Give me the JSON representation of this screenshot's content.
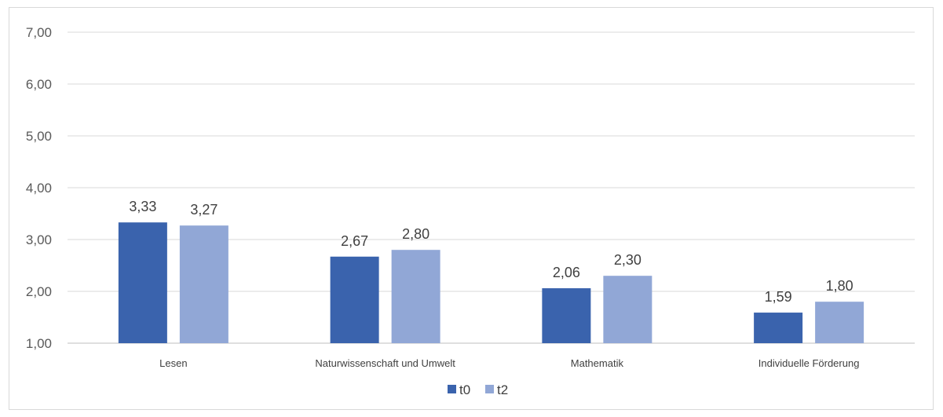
{
  "chart_data": {
    "type": "bar",
    "categories": [
      "Lesen",
      "Naturwissenschaft und Umwelt",
      "Mathematik",
      "Individuelle Förderung"
    ],
    "series": [
      {
        "name": "t0",
        "color": "#3a63ad",
        "values": [
          3.33,
          2.67,
          2.06,
          1.59
        ],
        "labels": [
          "3,33",
          "2,67",
          "2,06",
          "1,59"
        ]
      },
      {
        "name": "t2",
        "color": "#91a7d6",
        "values": [
          3.27,
          2.8,
          2.3,
          1.8
        ],
        "labels": [
          "3,27",
          "2,80",
          "2,30",
          "1,80"
        ]
      }
    ],
    "yticks": [
      1,
      2,
      3,
      4,
      5,
      6,
      7
    ],
    "ytick_labels": [
      "1,00",
      "2,00",
      "3,00",
      "4,00",
      "5,00",
      "6,00",
      "7,00"
    ],
    "ylim": [
      1,
      7
    ],
    "grid": true,
    "gridline_color": "#d9d9d9",
    "legend_position": "bottom"
  }
}
